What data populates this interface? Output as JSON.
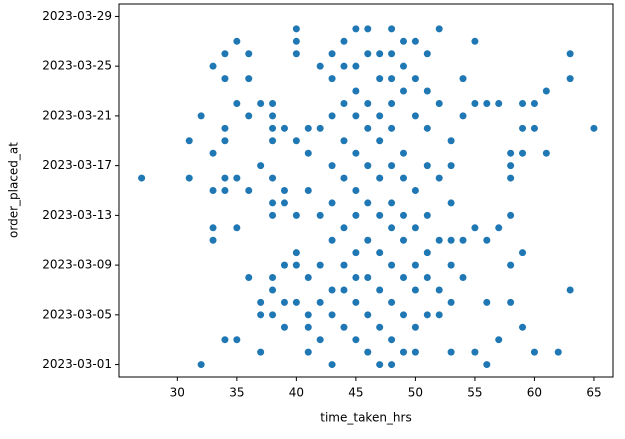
{
  "chart_data": {
    "type": "scatter",
    "xlabel": "time_taken_hrs",
    "ylabel": "order_placed_at",
    "color": "#1f77b4",
    "x": [
      27,
      31,
      31,
      32,
      32,
      33,
      33,
      33,
      33,
      33,
      34,
      34,
      34,
      34,
      34,
      34,
      34,
      35,
      35,
      35,
      35,
      35,
      36,
      36,
      36,
      36,
      36,
      37,
      37,
      37,
      37,
      37,
      38,
      38,
      38,
      38,
      38,
      38,
      38,
      38,
      38,
      38,
      39,
      39,
      39,
      39,
      39,
      39,
      40,
      40,
      40,
      40,
      40,
      40,
      40,
      40,
      41,
      41,
      41,
      41,
      41,
      41,
      41,
      42,
      42,
      42,
      42,
      42,
      42,
      43,
      43,
      43,
      43,
      43,
      43,
      43,
      43,
      43,
      44,
      44,
      44,
      44,
      44,
      44,
      44,
      44,
      44,
      45,
      45,
      45,
      45,
      45,
      45,
      45,
      45,
      45,
      45,
      45,
      46,
      46,
      46,
      46,
      46,
      46,
      46,
      46,
      46,
      46,
      47,
      47,
      47,
      47,
      47,
      47,
      47,
      47,
      47,
      47,
      48,
      48,
      48,
      48,
      48,
      48,
      48,
      48,
      48,
      48,
      48,
      48,
      49,
      49,
      49,
      49,
      49,
      49,
      49,
      49,
      49,
      49,
      50,
      50,
      50,
      50,
      50,
      50,
      50,
      50,
      50,
      51,
      51,
      51,
      51,
      51,
      51,
      51,
      51,
      52,
      52,
      52,
      52,
      52,
      52,
      53,
      53,
      53,
      53,
      53,
      53,
      53,
      54,
      54,
      54,
      54,
      55,
      55,
      55,
      55,
      56,
      56,
      56,
      56,
      57,
      57,
      57,
      58,
      58,
      58,
      58,
      58,
      58,
      59,
      59,
      59,
      59,
      59,
      60,
      60,
      60,
      61,
      61,
      62,
      63,
      63,
      63,
      65
    ],
    "values": [
      "2023-03-16",
      "2023-03-19",
      "2023-03-16",
      "2023-03-21",
      "2023-03-01",
      "2023-03-25",
      "2023-03-18",
      "2023-03-15",
      "2023-03-12",
      "2023-03-11",
      "2023-03-26",
      "2023-03-24",
      "2023-03-20",
      "2023-03-19",
      "2023-03-16",
      "2023-03-15",
      "2023-03-03",
      "2023-03-27",
      "2023-03-22",
      "2023-03-16",
      "2023-03-12",
      "2023-03-03",
      "2023-03-26",
      "2023-03-24",
      "2023-03-21",
      "2023-03-15",
      "2023-03-08",
      "2023-03-22",
      "2023-03-17",
      "2023-03-06",
      "2023-03-05",
      "2023-03-02",
      "2023-03-22",
      "2023-03-21",
      "2023-03-20",
      "2023-03-19",
      "2023-03-16",
      "2023-03-14",
      "2023-03-13",
      "2023-03-08",
      "2023-03-07",
      "2023-03-05",
      "2023-03-20",
      "2023-03-15",
      "2023-03-14",
      "2023-03-09",
      "2023-03-06",
      "2023-03-04",
      "2023-03-28",
      "2023-03-27",
      "2023-03-26",
      "2023-03-19",
      "2023-03-13",
      "2023-03-10",
      "2023-03-09",
      "2023-03-06",
      "2023-03-20",
      "2023-03-18",
      "2023-03-15",
      "2023-03-08",
      "2023-03-05",
      "2023-03-04",
      "2023-03-02",
      "2023-03-25",
      "2023-03-20",
      "2023-03-13",
      "2023-03-09",
      "2023-03-06",
      "2023-03-03",
      "2023-03-26",
      "2023-03-24",
      "2023-03-21",
      "2023-03-17",
      "2023-03-14",
      "2023-03-11",
      "2023-03-07",
      "2023-03-05",
      "2023-03-01",
      "2023-03-27",
      "2023-03-25",
      "2023-03-22",
      "2023-03-19",
      "2023-03-16",
      "2023-03-12",
      "2023-03-09",
      "2023-03-07",
      "2023-03-04",
      "2023-03-28",
      "2023-03-25",
      "2023-03-23",
      "2023-03-21",
      "2023-03-18",
      "2023-03-15",
      "2023-03-13",
      "2023-03-10",
      "2023-03-08",
      "2023-03-06",
      "2023-03-03",
      "2023-03-28",
      "2023-03-26",
      "2023-03-22",
      "2023-03-20",
      "2023-03-17",
      "2023-03-14",
      "2023-03-11",
      "2023-03-08",
      "2023-03-05",
      "2023-03-02",
      "2023-03-26",
      "2023-03-24",
      "2023-03-21",
      "2023-03-19",
      "2023-03-16",
      "2023-03-13",
      "2023-03-10",
      "2023-03-07",
      "2023-03-04",
      "2023-03-01",
      "2023-03-28",
      "2023-03-26",
      "2023-03-24",
      "2023-03-22",
      "2023-03-20",
      "2023-03-17",
      "2023-03-14",
      "2023-03-12",
      "2023-03-09",
      "2023-03-06",
      "2023-03-03",
      "2023-03-01",
      "2023-03-27",
      "2023-03-25",
      "2023-03-23",
      "2023-03-18",
      "2023-03-16",
      "2023-03-13",
      "2023-03-11",
      "2023-03-08",
      "2023-03-05",
      "2023-03-02",
      "2023-03-27",
      "2023-03-24",
      "2023-03-21",
      "2023-03-15",
      "2023-03-12",
      "2023-03-09",
      "2023-03-07",
      "2023-03-04",
      "2023-03-02",
      "2023-03-26",
      "2023-03-23",
      "2023-03-20",
      "2023-03-17",
      "2023-03-13",
      "2023-03-10",
      "2023-03-08",
      "2023-03-05",
      "2023-03-28",
      "2023-03-22",
      "2023-03-16",
      "2023-03-11",
      "2023-03-07",
      "2023-03-05",
      "2023-03-19",
      "2023-03-17",
      "2023-03-14",
      "2023-03-11",
      "2023-03-09",
      "2023-03-06",
      "2023-03-02",
      "2023-03-24",
      "2023-03-21",
      "2023-03-11",
      "2023-03-08",
      "2023-03-27",
      "2023-03-22",
      "2023-03-12",
      "2023-03-02",
      "2023-03-22",
      "2023-03-11",
      "2023-03-06",
      "2023-03-01",
      "2023-03-22",
      "2023-03-12",
      "2023-03-03",
      "2023-03-18",
      "2023-03-17",
      "2023-03-16",
      "2023-03-13",
      "2023-03-09",
      "2023-03-06",
      "2023-03-22",
      "2023-03-20",
      "2023-03-18",
      "2023-03-10",
      "2023-03-04",
      "2023-03-22",
      "2023-03-20",
      "2023-03-02",
      "2023-03-23",
      "2023-03-18",
      "2023-03-02",
      "2023-03-26",
      "2023-03-24",
      "2023-03-07",
      "2023-03-20"
    ],
    "xlim": [
      25.1,
      66.6
    ],
    "xticks": [
      30,
      35,
      40,
      45,
      50,
      55,
      60,
      65
    ],
    "ylim": [
      "2023-02-28",
      "2023-03-30"
    ],
    "yticks": [
      "2023-03-01",
      "2023-03-05",
      "2023-03-09",
      "2023-03-13",
      "2023-03-17",
      "2023-03-21",
      "2023-03-25",
      "2023-03-29"
    ]
  }
}
